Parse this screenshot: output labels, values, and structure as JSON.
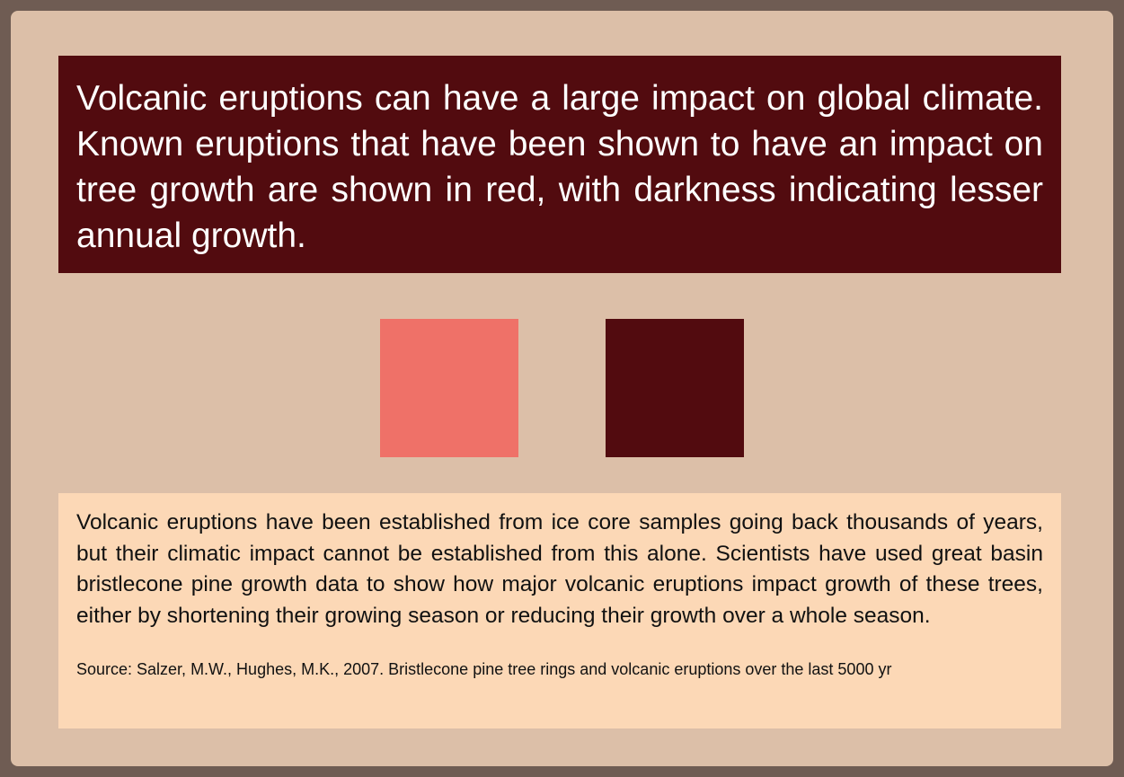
{
  "colors": {
    "frame": "#6f5c53",
    "panel_background": "#dcbfa8",
    "title_background": "#520b0f",
    "info_background": "#fcd8b6",
    "light_red": "#ef7168",
    "dark_red": "#520b0f"
  },
  "title": {
    "text": "Volcanic eruptions can have a large impact on global climate. Known eruptions that have been shown to have an impact on tree growth are shown in red, with darkness indicating lesser annual growth."
  },
  "swatches": [
    {
      "color": "#ef7168"
    },
    {
      "color": "#520b0f"
    }
  ],
  "info": {
    "body": "Volcanic eruptions have been established from ice core samples going back thou­sands of years, but their climatic impact cannot be established from this alone. Scientists have used great basin bristlecone pine growth data to show how major volcanic eruptions impact growth of these trees, either by shortening their growing season or reducing their growth over a whole season.",
    "source": "Source: Salzer, M.W., Hughes, M.K., 2007. Bristlecone pine tree rings and volcanic eruptions over the last 5000 yr"
  }
}
